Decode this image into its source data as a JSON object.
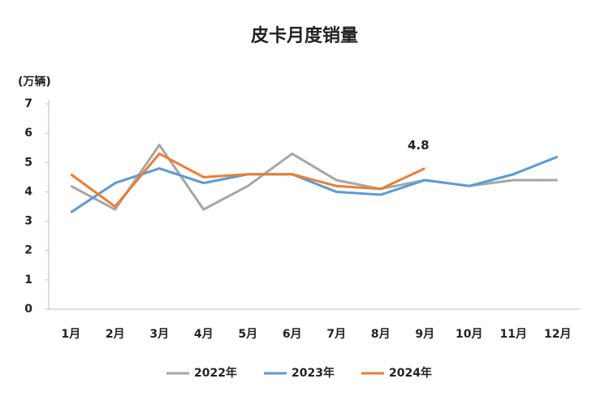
{
  "chart_data": {
    "type": "line",
    "title": "皮卡月度销量",
    "y_label": "(万辆)",
    "categories": [
      "1月",
      "2月",
      "3月",
      "4月",
      "5月",
      "6月",
      "7月",
      "8月",
      "9月",
      "10月",
      "11月",
      "12月"
    ],
    "series": [
      {
        "name": "2022年",
        "color": "#a6a6a6",
        "values": [
          4.2,
          3.4,
          5.6,
          3.4,
          4.2,
          5.3,
          4.4,
          4.1,
          4.4,
          4.2,
          4.4,
          4.4
        ]
      },
      {
        "name": "2023年",
        "color": "#5b9bd5",
        "values": [
          3.3,
          4.3,
          4.8,
          4.3,
          4.6,
          4.6,
          4.0,
          3.9,
          4.4,
          4.2,
          4.6,
          5.2
        ]
      },
      {
        "name": "2024年",
        "color": "#ed7d31",
        "values": [
          4.6,
          3.5,
          5.3,
          4.5,
          4.6,
          4.6,
          4.2,
          4.1,
          4.8,
          null,
          null,
          null
        ]
      }
    ],
    "labeled_points": [
      {
        "series": 2,
        "index": 8
      }
    ],
    "ylim": [
      0,
      7
    ],
    "yticks": [
      0,
      1,
      2,
      3,
      4,
      5,
      6,
      7
    ],
    "grid": false,
    "legend": "bottom"
  }
}
